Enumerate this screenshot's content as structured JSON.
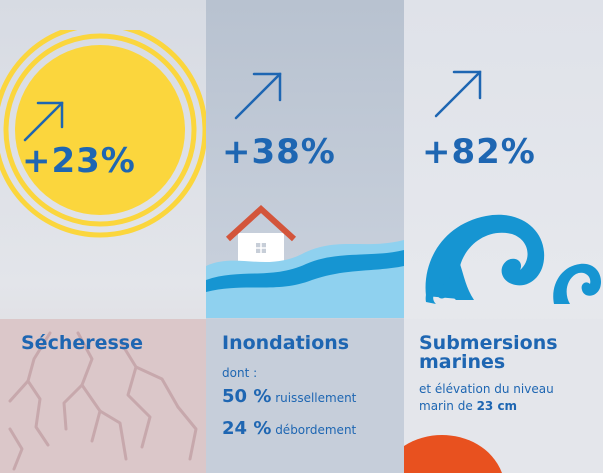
{
  "colors": {
    "accent_blue": "#1e66b2",
    "sun_yellow": "#fbd63d",
    "wave_blue": "#1695d2",
    "orange": "#e8511f"
  },
  "drought": {
    "percent": "+23%",
    "title": "Sécheresse",
    "icons": [
      "arrow-up-right-icon",
      "sun-icon",
      "cracked-ground-icon"
    ]
  },
  "flood": {
    "percent": "+38%",
    "title": "Inondations",
    "dont": "dont :",
    "runoff_value": "50 %",
    "runoff_label": "ruissellement",
    "overflow_value": "24 %",
    "overflow_label": "débordement",
    "icons": [
      "arrow-up-right-icon",
      "house-icon",
      "flood-wave-icon"
    ]
  },
  "submersion": {
    "percent": "+82%",
    "title_line1": "Submersions",
    "title_line2": "marines",
    "desc_line1": "et élévation du niveau",
    "desc_line2_prefix": "marin de",
    "desc_line2_value": "23 cm",
    "icons": [
      "arrow-up-right-icon",
      "ocean-wave-icon"
    ]
  }
}
